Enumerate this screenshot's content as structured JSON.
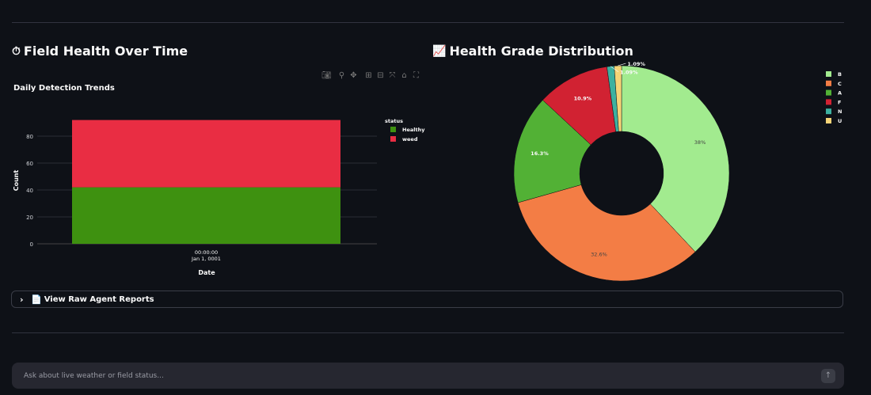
{
  "left_section": {
    "icon": "⏱",
    "icon_name": "stopwatch-icon",
    "title": "Field Health Over Time"
  },
  "right_section": {
    "icon": "📈",
    "icon_name": "chart-increasing-icon",
    "title": "Health Grade Distribution"
  },
  "modebar": [
    "camera-icon",
    "zoom-icon",
    "pan-icon",
    "zoom-in-icon",
    "zoom-out-icon",
    "autoscale-icon",
    "reset-axes-icon",
    "fullscreen-icon"
  ],
  "chart_data": [
    {
      "type": "bar",
      "barmode": "stack",
      "title": "Daily Detection Trends",
      "xlabel": "Date",
      "ylabel": "Count",
      "categories": [
        "00:00:00\nJan 1, 0001"
      ],
      "series": [
        {
          "name": "Healthy",
          "values": [
            42
          ],
          "color": "#3e9110"
        },
        {
          "name": "weed",
          "values": [
            50
          ],
          "color": "#e92d43"
        }
      ],
      "ylim": [
        0,
        97
      ],
      "yticks": [
        0,
        20,
        40,
        60,
        80
      ],
      "legend_title": "status",
      "legend_position": "top-right",
      "grid": true
    },
    {
      "type": "pie",
      "hole": true,
      "labels": [
        "B",
        "C",
        "A",
        "F",
        "N",
        "U"
      ],
      "values": [
        38,
        32.6,
        16.3,
        10.9,
        1.09,
        1.09
      ],
      "value_labels": [
        "38%",
        "32.6%",
        "16.3%",
        "10.9%",
        "1.09%",
        "1.09%"
      ],
      "colors": [
        "#a2eb8f",
        "#f37d45",
        "#52b135",
        "#d12232",
        "#3db1a0",
        "#f5d477"
      ],
      "legend_position": "right"
    }
  ],
  "expander": {
    "label": "View Raw Agent Reports",
    "doc_icon": "📄"
  },
  "chat": {
    "placeholder": "Ask about live weather or field status...",
    "send_icon": "↑"
  }
}
